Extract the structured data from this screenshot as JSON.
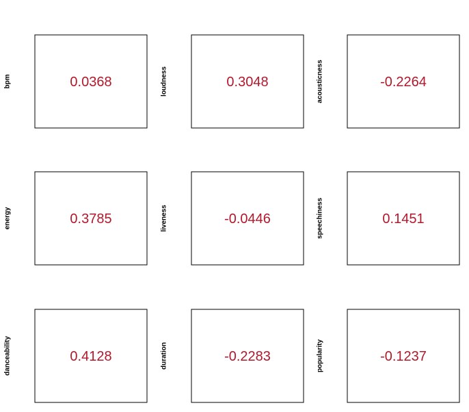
{
  "chart_data": {
    "type": "table",
    "value_color": "#b2182b",
    "panels": [
      {
        "ylabel": "bpm",
        "value": "0.0368"
      },
      {
        "ylabel": "loudness",
        "value": "0.3048"
      },
      {
        "ylabel": "acousticness",
        "value": "-0.2264"
      },
      {
        "ylabel": "energy",
        "value": "0.3785"
      },
      {
        "ylabel": "liveness",
        "value": "-0.0446"
      },
      {
        "ylabel": "speechiness",
        "value": "0.1451"
      },
      {
        "ylabel": "danceability",
        "value": "0.4128"
      },
      {
        "ylabel": "duration",
        "value": "-0.2283"
      },
      {
        "ylabel": "popularity",
        "value": "-0.1237"
      }
    ]
  }
}
